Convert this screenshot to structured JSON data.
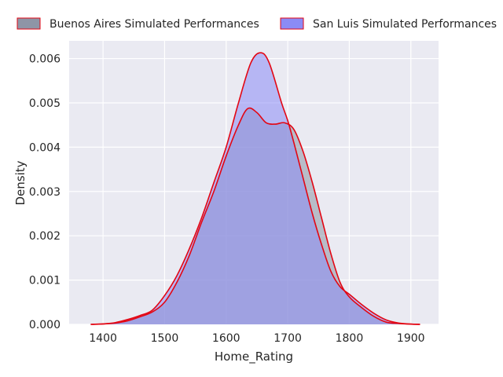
{
  "chart_data": {
    "type": "area",
    "xlabel": "Home_Rating",
    "ylabel": "Density",
    "xlim": [
      1345,
      1945
    ],
    "ylim": [
      0,
      0.0064
    ],
    "x_ticks": [
      1400,
      1500,
      1600,
      1700,
      1800,
      1900
    ],
    "x_tick_labels": [
      "1400",
      "1500",
      "1600",
      "1700",
      "1800",
      "1900"
    ],
    "y_ticks": [
      0,
      0.001,
      0.002,
      0.003,
      0.004,
      0.005,
      0.006
    ],
    "y_tick_labels": [
      "0.000",
      "0.001",
      "0.002",
      "0.003",
      "0.004",
      "0.005",
      "0.006"
    ],
    "grid": true,
    "legend_position": "top",
    "background_color": "#eaeaf2",
    "series": [
      {
        "name": "Buenos Aires Simulated Performances",
        "fill_color": "#8e95a6",
        "edge_color": "#e30613",
        "points": [
          [
            1380,
            0
          ],
          [
            1400,
            1e-05
          ],
          [
            1420,
            3e-05
          ],
          [
            1440,
            8e-05
          ],
          [
            1460,
            0.00017
          ],
          [
            1480,
            0.00028
          ],
          [
            1500,
            0.0005
          ],
          [
            1520,
            0.00095
          ],
          [
            1540,
            0.00155
          ],
          [
            1560,
            0.0023
          ],
          [
            1580,
            0.003
          ],
          [
            1600,
            0.0038
          ],
          [
            1620,
            0.0045
          ],
          [
            1635,
            0.00487
          ],
          [
            1650,
            0.00478
          ],
          [
            1665,
            0.00455
          ],
          [
            1680,
            0.00452
          ],
          [
            1695,
            0.00455
          ],
          [
            1710,
            0.0044
          ],
          [
            1725,
            0.0039
          ],
          [
            1740,
            0.0032
          ],
          [
            1755,
            0.0024
          ],
          [
            1770,
            0.0016
          ],
          [
            1785,
            0.00095
          ],
          [
            1800,
            0.00062
          ],
          [
            1820,
            0.00038
          ],
          [
            1840,
            0.00018
          ],
          [
            1860,
            5e-05
          ],
          [
            1880,
            2e-05
          ],
          [
            1900,
            5e-06
          ],
          [
            1915,
            0
          ]
        ]
      },
      {
        "name": "San Luis Simulated Performances",
        "fill_color": "#8b8bf5",
        "edge_color": "#e30613",
        "points": [
          [
            1380,
            0
          ],
          [
            1400,
            1e-05
          ],
          [
            1420,
            4e-05
          ],
          [
            1440,
            0.00011
          ],
          [
            1460,
            0.0002
          ],
          [
            1480,
            0.00032
          ],
          [
            1500,
            0.00065
          ],
          [
            1520,
            0.0011
          ],
          [
            1540,
            0.0017
          ],
          [
            1560,
            0.0024
          ],
          [
            1580,
            0.0032
          ],
          [
            1600,
            0.004
          ],
          [
            1620,
            0.005
          ],
          [
            1640,
            0.0059
          ],
          [
            1656,
            0.00613
          ],
          [
            1670,
            0.0059
          ],
          [
            1690,
            0.005
          ],
          [
            1700,
            0.0046
          ],
          [
            1710,
            0.0041
          ],
          [
            1725,
            0.0033
          ],
          [
            1740,
            0.0025
          ],
          [
            1755,
            0.0018
          ],
          [
            1770,
            0.0012
          ],
          [
            1785,
            0.00085
          ],
          [
            1800,
            0.00068
          ],
          [
            1820,
            0.00045
          ],
          [
            1840,
            0.00025
          ],
          [
            1860,
            0.0001
          ],
          [
            1880,
            3e-05
          ],
          [
            1900,
            8e-06
          ],
          [
            1915,
            0
          ]
        ]
      }
    ]
  }
}
